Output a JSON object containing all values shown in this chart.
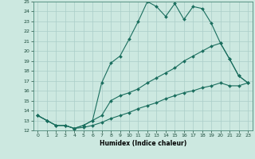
{
  "xlabel": "Humidex (Indice chaleur)",
  "ylabel": "",
  "xlim": [
    -0.5,
    23.5
  ],
  "ylim": [
    12,
    25
  ],
  "xticks": [
    0,
    1,
    2,
    3,
    4,
    5,
    6,
    7,
    8,
    9,
    10,
    11,
    12,
    13,
    14,
    15,
    16,
    17,
    18,
    19,
    20,
    21,
    22,
    23
  ],
  "yticks": [
    12,
    13,
    14,
    15,
    16,
    17,
    18,
    19,
    20,
    21,
    22,
    23,
    24,
    25
  ],
  "background_color": "#cce8e0",
  "grid_color": "#aacec8",
  "line_color": "#1a6e5e",
  "series": [
    {
      "x": [
        0,
        1,
        2,
        3,
        4,
        5,
        6,
        7,
        8,
        9,
        10,
        11,
        12,
        13,
        14,
        15,
        16,
        17,
        18,
        19,
        20,
        21,
        22,
        23
      ],
      "y": [
        13.5,
        13.0,
        12.5,
        12.5,
        12.2,
        12.5,
        13.0,
        16.8,
        18.8,
        19.5,
        21.2,
        23.0,
        25.0,
        24.5,
        23.5,
        24.8,
        23.2,
        24.5,
        24.3,
        22.8,
        20.8,
        19.2,
        17.5,
        16.8
      ]
    },
    {
      "x": [
        0,
        1,
        2,
        3,
        4,
        5,
        6,
        7,
        8,
        9,
        10,
        11,
        12,
        13,
        14,
        15,
        16,
        17,
        18,
        19,
        20,
        21,
        22,
        23
      ],
      "y": [
        13.5,
        13.0,
        12.5,
        12.5,
        12.2,
        12.5,
        13.0,
        13.5,
        15.0,
        15.5,
        15.8,
        16.2,
        16.8,
        17.3,
        17.8,
        18.3,
        19.0,
        19.5,
        20.0,
        20.5,
        20.8,
        19.2,
        17.5,
        16.8
      ]
    },
    {
      "x": [
        0,
        1,
        2,
        3,
        4,
        5,
        6,
        7,
        8,
        9,
        10,
        11,
        12,
        13,
        14,
        15,
        16,
        17,
        18,
        19,
        20,
        21,
        22,
        23
      ],
      "y": [
        13.5,
        13.0,
        12.5,
        12.5,
        12.2,
        12.3,
        12.5,
        12.8,
        13.2,
        13.5,
        13.8,
        14.2,
        14.5,
        14.8,
        15.2,
        15.5,
        15.8,
        16.0,
        16.3,
        16.5,
        16.8,
        16.5,
        16.5,
        16.8
      ]
    }
  ]
}
